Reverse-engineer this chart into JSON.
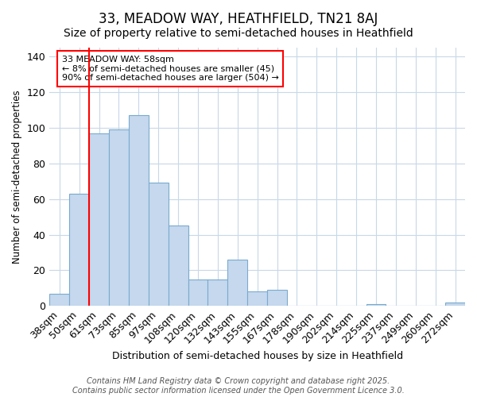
{
  "title": "33, MEADOW WAY, HEATHFIELD, TN21 8AJ",
  "subtitle": "Size of property relative to semi-detached houses in Heathfield",
  "xlabel": "Distribution of semi-detached houses by size in Heathfield",
  "ylabel": "Number of semi-detached properties",
  "bin_labels": [
    "38sqm",
    "50sqm",
    "61sqm",
    "73sqm",
    "85sqm",
    "97sqm",
    "108sqm",
    "120sqm",
    "132sqm",
    "143sqm",
    "155sqm",
    "167sqm",
    "178sqm",
    "190sqm",
    "202sqm",
    "214sqm",
    "225sqm",
    "237sqm",
    "249sqm",
    "260sqm",
    "272sqm"
  ],
  "bar_heights": [
    7,
    63,
    97,
    99,
    107,
    69,
    45,
    15,
    15,
    26,
    8,
    9,
    0,
    0,
    0,
    0,
    1,
    0,
    0,
    0,
    2
  ],
  "bar_color": "#c5d8ed",
  "bar_edge_color": "#7aaace",
  "vline_color": "red",
  "annotation_title": "33 MEADOW WAY: 58sqm",
  "annotation_line1": "← 8% of semi-detached houses are smaller (45)",
  "annotation_line2": "90% of semi-detached houses are larger (504) →",
  "footer_line1": "Contains HM Land Registry data © Crown copyright and database right 2025.",
  "footer_line2": "Contains public sector information licensed under the Open Government Licence 3.0.",
  "ylim": [
    0,
    145
  ],
  "background_color": "#ffffff",
  "plot_background": "#ffffff",
  "grid_color": "#c8d8e8",
  "title_fontsize": 12,
  "subtitle_fontsize": 10
}
